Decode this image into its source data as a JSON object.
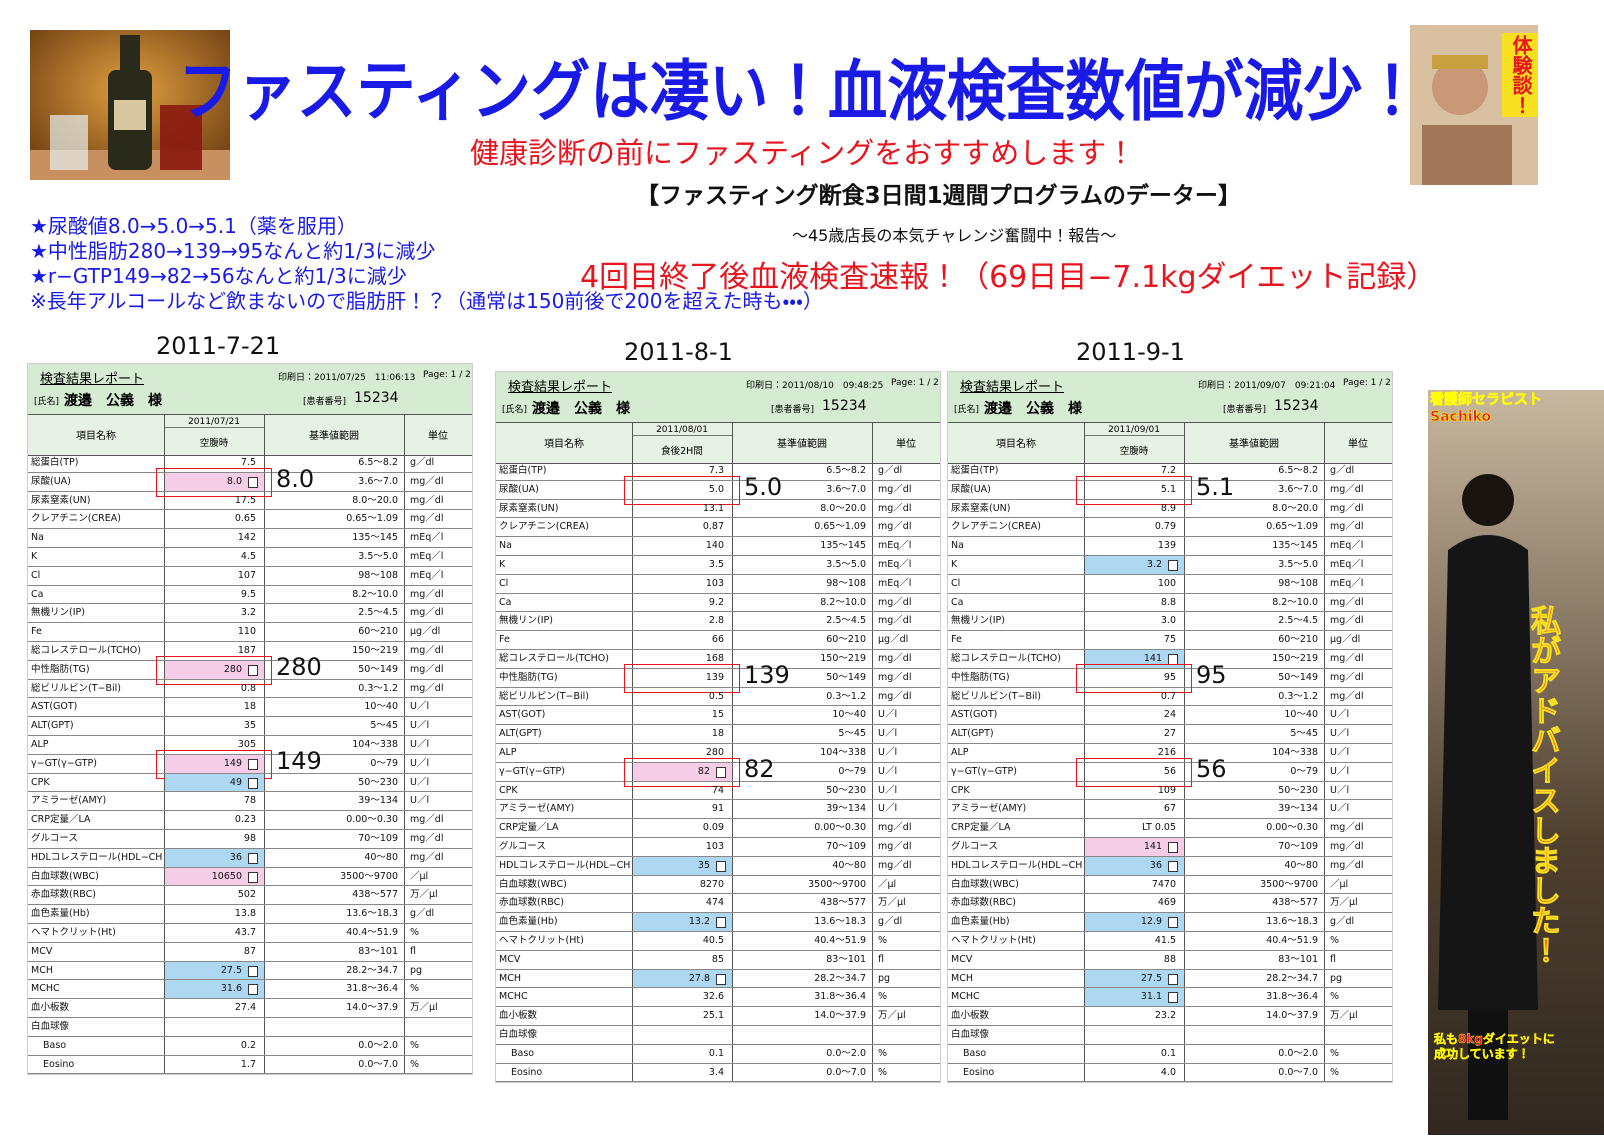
{
  "header": {
    "title": "ファスティングは凄い！血液検査数値が減少！",
    "subtitle": "健康診断の前にファスティングをおすすめします！",
    "program": "【ファスティング断食3日間1週間プログラムのデーター】",
    "challenge": "～45歳店長の本気チャレンジ奮闘中！報告～",
    "report": "4回目終了後血液検査速報！（69日目−7.1kgダイエット記録）",
    "badge": "体験談！"
  },
  "notes": [
    "★尿酸値8.0→5.0→5.1（薬を服用）",
    "★中性脂肪280→139→95なんと約1/3に減少",
    "★r−GTP149→82→56なんと約1/3に減少",
    "※長年アルコールなど飲まないので脂肪肝！？（通常は150前後で200を超えた時も・・・）"
  ],
  "side": {
    "label": [
      "看護師セラピスト",
      "Sachiko"
    ],
    "message": "私がアドバイスしました！",
    "footer": [
      "私も8kgダイエットに",
      "成功しています！"
    ]
  },
  "columns": {
    "item": "項目名称",
    "range": "基準値範囲",
    "unit": "単位"
  },
  "items": [
    {
      "name": "総蛋白(TP)",
      "range": "6.5～8.2",
      "unit": "g／dl"
    },
    {
      "name": "尿酸(UA)",
      "range": "3.6～7.0",
      "unit": "mg／dl"
    },
    {
      "name": "尿素窒素(UN)",
      "range": "8.0～20.0",
      "unit": "mg／dl"
    },
    {
      "name": "クレアチニン(CREA)",
      "range": "0.65～1.09",
      "unit": "mg／dl"
    },
    {
      "name": "Na",
      "range": "135～145",
      "unit": "mEq／l"
    },
    {
      "name": "K",
      "range": "3.5～5.0",
      "unit": "mEq／l"
    },
    {
      "name": "Cl",
      "range": "98～108",
      "unit": "mEq／l"
    },
    {
      "name": "Ca",
      "range": "8.2～10.0",
      "unit": "mg／dl"
    },
    {
      "name": "無機リン(IP)",
      "range": "2.5～4.5",
      "unit": "mg／dl"
    },
    {
      "name": "Fe",
      "range": "60～210",
      "unit": "μg／dl"
    },
    {
      "name": "総コレステロール(TCHO)",
      "range": "150～219",
      "unit": "mg／dl"
    },
    {
      "name": "中性脂肪(TG)",
      "range": "50～149",
      "unit": "mg／dl"
    },
    {
      "name": "総ビリルビン(T−Bil)",
      "range": "0.3～1.2",
      "unit": "mg／dl"
    },
    {
      "name": "AST(GOT)",
      "range": "10～40",
      "unit": "U／l"
    },
    {
      "name": "ALT(GPT)",
      "range": "5～45",
      "unit": "U／l"
    },
    {
      "name": "ALP",
      "range": "104～338",
      "unit": "U／l"
    },
    {
      "name": "γ−GT(γ−GTP)",
      "range": "0～79",
      "unit": "U／l"
    },
    {
      "name": "CPK",
      "range": "50～230",
      "unit": "U／l"
    },
    {
      "name": "アミラーゼ(AMY)",
      "range": "39～134",
      "unit": "U／l"
    },
    {
      "name": "CRP定量／LA",
      "range": "0.00～0.30",
      "unit": "mg／dl"
    },
    {
      "name": "グルコース",
      "range": "70～109",
      "unit": "mg／dl"
    },
    {
      "name": "HDLコレステロール(HDL−CHO",
      "range": "40～80",
      "unit": "mg／dl"
    },
    {
      "name": "白血球数(WBC)",
      "range": "3500～9700",
      "unit": "／μl"
    },
    {
      "name": "赤血球数(RBC)",
      "range": "438～577",
      "unit": "万／μl"
    },
    {
      "name": "血色素量(Hb)",
      "range": "13.6～18.3",
      "unit": "g／dl"
    },
    {
      "name": "ヘマトクリット(Ht)",
      "range": "40.4～51.9",
      "unit": "%"
    },
    {
      "name": "MCV",
      "range": "83～101",
      "unit": "fl"
    },
    {
      "name": "MCH",
      "range": "28.2～34.7",
      "unit": "pg"
    },
    {
      "name": "MCHC",
      "range": "31.8～36.4",
      "unit": "%"
    },
    {
      "name": "血小板数",
      "range": "14.0～37.9",
      "unit": "万／μl"
    },
    {
      "name": "白血球像"
    },
    {
      "name": "Baso",
      "range": "0.0～2.0",
      "unit": "%"
    },
    {
      "name": "Eosino",
      "range": "0.0～7.0",
      "unit": "%"
    }
  ],
  "reports": [
    {
      "date": "2011-7-21",
      "title": "検査結果レポート",
      "printed": "印刷日：2011/07/25　11:06:13",
      "page": "Page:  1 / 2",
      "name_label": "[氏名]",
      "name": "渡邉　公義　様",
      "patient_label": "[患者番号]",
      "patient_no": "15234",
      "test_date": "2011/07/21",
      "condition": "空腹時",
      "values": [
        "7.5",
        {
          "text": "8.0",
          "flag": "high",
          "callout": "8.0"
        },
        "17.5",
        "0.65",
        "142",
        "4.5",
        "107",
        "9.5",
        "3.2",
        "110",
        "187",
        {
          "text": "280",
          "flag": "high",
          "callout": "280"
        },
        "0.8",
        "18",
        "35",
        "305",
        {
          "text": "149",
          "flag": "high",
          "callout": "149"
        },
        {
          "text": "49",
          "flag": "low"
        },
        "78",
        "0.23",
        "98",
        {
          "text": "36",
          "flag": "low"
        },
        {
          "text": "10650",
          "flag": "high"
        },
        "502",
        "13.8",
        "43.7",
        "87",
        {
          "text": "27.5",
          "flag": "low"
        },
        {
          "text": "31.6",
          "flag": "low"
        },
        "27.4",
        null,
        "0.2",
        "1.7"
      ]
    },
    {
      "date": "2011-8-1",
      "title": "検査結果レポート",
      "printed": "印刷日：2011/08/10　09:48:25",
      "page": "Page:  1 / 2",
      "name_label": "[氏名]",
      "name": "渡邉　公義　様",
      "patient_label": "[患者番号]",
      "patient_no": "15234",
      "test_date": "2011/08/01",
      "condition": "食後2H間",
      "values": [
        "7.3",
        {
          "text": "5.0",
          "callout": "5.0"
        },
        "13.1",
        "0.87",
        "140",
        "3.5",
        "103",
        "9.2",
        "2.8",
        "66",
        "168",
        {
          "text": "139",
          "callout": "139"
        },
        "0.5",
        "15",
        "18",
        "280",
        {
          "text": "82",
          "flag": "high",
          "callout": "82"
        },
        "74",
        "91",
        "0.09",
        "103",
        {
          "text": "35",
          "flag": "low"
        },
        "8270",
        "474",
        {
          "text": "13.2",
          "flag": "low"
        },
        "40.5",
        "85",
        {
          "text": "27.8",
          "flag": "low"
        },
        "32.6",
        "25.1",
        null,
        "0.1",
        "3.4"
      ]
    },
    {
      "date": "2011-9-1",
      "title": "検査結果レポート",
      "printed": "印刷日：2011/09/07　09:21:04",
      "page": "Page:  1 / 2",
      "name_label": "[氏名]",
      "name": "渡邉　公義　様",
      "patient_label": "[患者番号]",
      "patient_no": "15234",
      "test_date": "2011/09/01",
      "condition": "空腹時",
      "values": [
        "7.2",
        {
          "text": "5.1",
          "callout": "5.1"
        },
        "8.9",
        "0.79",
        "139",
        {
          "text": "3.2",
          "flag": "low"
        },
        "100",
        "8.8",
        "3.0",
        "75",
        {
          "text": "141",
          "flag": "low"
        },
        {
          "text": "95",
          "callout": "95"
        },
        "0.7",
        "24",
        "27",
        "216",
        {
          "text": "56",
          "callout": "56"
        },
        "109",
        "67",
        "LT 0.05",
        {
          "text": "141",
          "flag": "high"
        },
        {
          "text": "36",
          "flag": "low"
        },
        "7470",
        "469",
        {
          "text": "12.9",
          "flag": "low"
        },
        "41.5",
        "88",
        {
          "text": "27.5",
          "flag": "low"
        },
        {
          "text": "31.1",
          "flag": "low"
        },
        "23.2",
        null,
        "0.1",
        "4.0"
      ]
    }
  ]
}
